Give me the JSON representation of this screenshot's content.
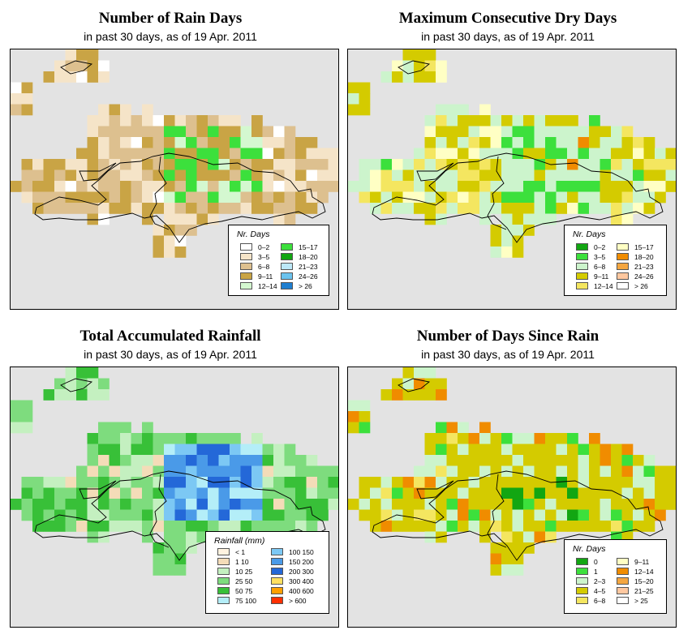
{
  "panels": [
    {
      "id": "rain-days",
      "title": "Number of Rain Days",
      "subtitle": "in past 30 days, as of  19 Apr. 2011",
      "legend": {
        "title": "Nr. Days",
        "items": [
          {
            "label": "0–2",
            "color": "#ffffff"
          },
          {
            "label": "3–5",
            "color": "#f5e4c8"
          },
          {
            "label": "6–8",
            "color": "#ddc08f"
          },
          {
            "label": "9–11",
            "color": "#c9a445"
          },
          {
            "label": "12–14",
            "color": "#d4f8d0"
          },
          {
            "label": "15–17",
            "color": "#3ce03c"
          },
          {
            "label": "18–20",
            "color": "#12a612"
          },
          {
            "label": "21–23",
            "color": "#bce8f8"
          },
          {
            "label": "24–26",
            "color": "#6bc3ee"
          },
          {
            "label": "> 26",
            "color": "#1f7fd0"
          }
        ]
      }
    },
    {
      "id": "dry-days",
      "title": "Maximum Consecutive Dry Days",
      "subtitle": "in past 30 days, as of  19 Apr. 2011",
      "legend": {
        "title": "Nr. Days",
        "items": [
          {
            "label": "0–2",
            "color": "#12a612"
          },
          {
            "label": "3–5",
            "color": "#3ce03c"
          },
          {
            "label": "6–8",
            "color": "#ccf4cc"
          },
          {
            "label": "9–11",
            "color": "#d4cb00"
          },
          {
            "label": "12–14",
            "color": "#f4e660"
          },
          {
            "label": "15–17",
            "color": "#ffffc4"
          },
          {
            "label": "18–20",
            "color": "#f08c00"
          },
          {
            "label": "21–23",
            "color": "#f4a640"
          },
          {
            "label": "24–26",
            "color": "#ffc8a0"
          },
          {
            "label": "> 26",
            "color": "#ffffff"
          }
        ]
      }
    },
    {
      "id": "rainfall",
      "title": "Total Accumulated Rainfall",
      "subtitle": "in past 30 days, as of  19 Apr. 2011",
      "legend": {
        "title": "Rainfall (mm)",
        "items": [
          {
            "label": "  < 1",
            "color": "#fff3e0"
          },
          {
            "label": "  1   10",
            "color": "#f4dcb8"
          },
          {
            "label": " 10   25",
            "color": "#c4f0c0"
          },
          {
            "label": " 25   50",
            "color": "#7edc7e"
          },
          {
            "label": " 50   75",
            "color": "#38c038"
          },
          {
            "label": " 75  100",
            "color": "#b4eef8"
          },
          {
            "label": "100  150",
            "color": "#7cc8f4"
          },
          {
            "label": "150  200",
            "color": "#4a9ae8"
          },
          {
            "label": "200  300",
            "color": "#2468d8"
          },
          {
            "label": "300  400",
            "color": "#ffe060"
          },
          {
            "label": "400  600",
            "color": "#ffa000"
          },
          {
            "label": "> 600",
            "color": "#ff3000"
          }
        ]
      }
    },
    {
      "id": "since-rain",
      "title": "Number of Days Since Rain",
      "subtitle": "in past 30 days, as of  19 Apr. 2011",
      "legend": {
        "title": "Nr. Days",
        "items": [
          {
            "label": "0",
            "color": "#12a612"
          },
          {
            "label": "1",
            "color": "#3ce03c"
          },
          {
            "label": "2–3",
            "color": "#ccf4cc"
          },
          {
            "label": "4–5",
            "color": "#d4cb00"
          },
          {
            "label": "6–8",
            "color": "#f4e660"
          },
          {
            "label": "9–11",
            "color": "#ffffc4"
          },
          {
            "label": "12–14",
            "color": "#f08c00"
          },
          {
            "label": "15–20",
            "color": "#f4a640"
          },
          {
            "label": "21–25",
            "color": "#ffc8a0"
          },
          {
            "label": "> 25",
            "color": "#ffffff"
          }
        ]
      }
    }
  ]
}
